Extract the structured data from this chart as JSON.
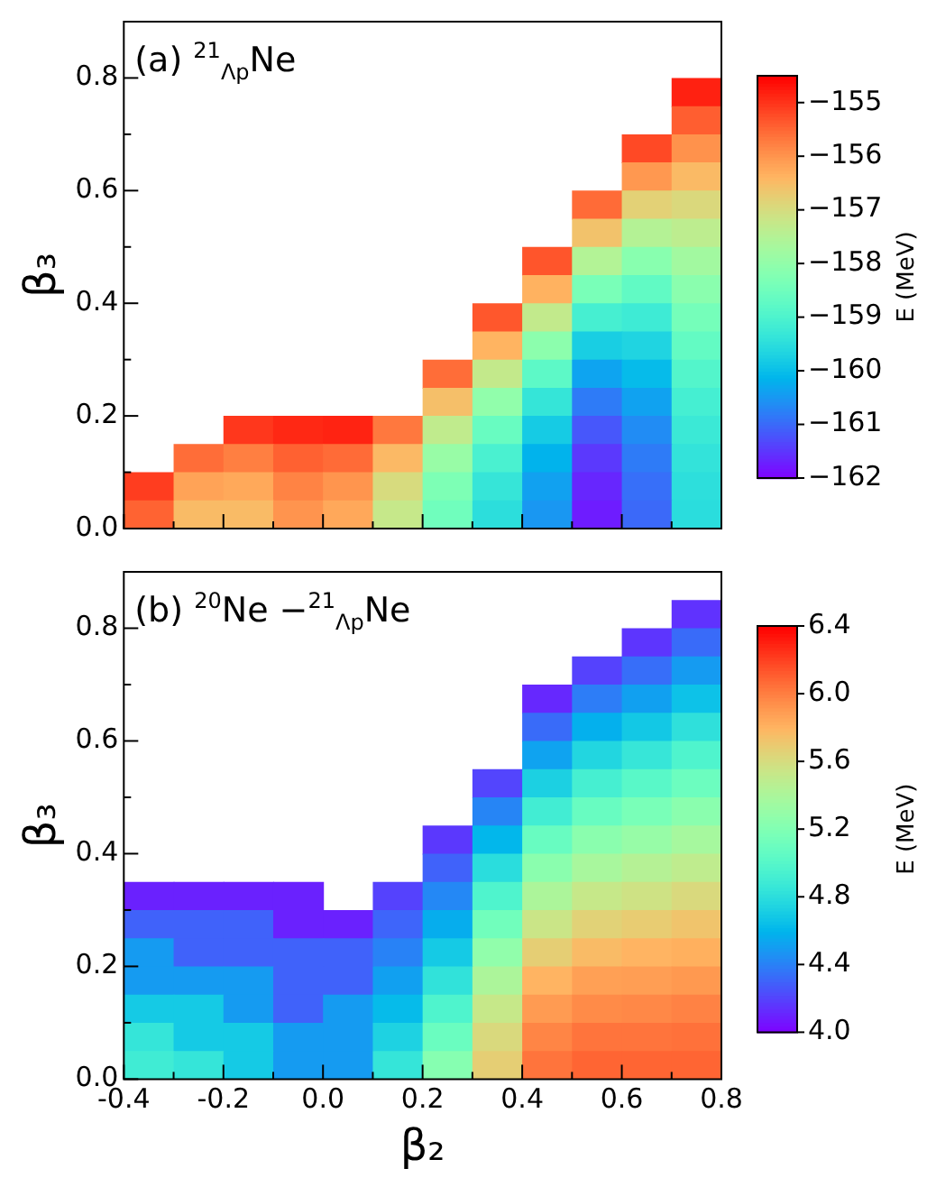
{
  "chart_data": [
    {
      "type": "heatmap",
      "title": "(a) $^{21}$$_{Λp}$Ne",
      "ylabel": "β₃",
      "clabel": "E (MeV)",
      "tick_labels": "y",
      "x": [
        -0.35,
        -0.25,
        -0.15,
        -0.05,
        0.05,
        0.15,
        0.25,
        0.35,
        0.45,
        0.55,
        0.65,
        0.75
      ],
      "y": [
        0.775,
        0.725,
        0.675,
        0.625,
        0.575,
        0.525,
        0.475,
        0.425,
        0.375,
        0.325,
        0.275,
        0.225,
        0.175,
        0.125,
        0.075,
        0.025
      ],
      "xlim": [
        -0.4,
        0.8
      ],
      "xticks": [
        -0.4,
        {
          "value": -0.3,
          "label": null
        },
        -0.2,
        {
          "value": -0.1,
          "label": null
        },
        0,
        {
          "value": 0.1,
          "label": null
        },
        0.2,
        {
          "value": 0.3,
          "label": null
        },
        0.4,
        {
          "value": 0.5,
          "label": null
        },
        0.6,
        {
          "value": 0.7,
          "label": null
        },
        0.8
      ],
      "ylim": [
        0,
        0.9
      ],
      "yticks": [
        {
          "value": 0,
          "label": "0.0"
        },
        {
          "value": 0.1,
          "label": null
        },
        0.2,
        {
          "value": 0.3,
          "label": null
        },
        0.4,
        {
          "value": 0.5,
          "label": null
        },
        0.6,
        {
          "value": 0.7,
          "label": null
        },
        0.8
      ],
      "clim": [
        -162,
        -154.5
      ],
      "cticks": [
        {
          "value": -162,
          "label": "−162"
        },
        {
          "value": -161,
          "label": "−161"
        },
        {
          "value": -160,
          "label": "−160"
        },
        {
          "value": -159,
          "label": "−159"
        },
        {
          "value": -158,
          "label": "−158"
        },
        {
          "value": -157,
          "label": "−157"
        },
        {
          "value": -156,
          "label": "−156"
        },
        {
          "value": -155,
          "label": "−155"
        }
      ],
      "cells": [
        [
          null,
          null,
          null,
          null,
          null,
          null,
          null,
          null,
          null,
          null,
          null,
          -154.81
        ],
        [
          null,
          null,
          null,
          null,
          null,
          null,
          null,
          null,
          null,
          null,
          null,
          -155.4
        ],
        [
          null,
          null,
          null,
          null,
          null,
          null,
          null,
          null,
          null,
          null,
          -155.19,
          -155.95
        ],
        [
          null,
          null,
          null,
          null,
          null,
          null,
          null,
          null,
          null,
          null,
          -156.02,
          -156.45
        ],
        [
          null,
          null,
          null,
          null,
          null,
          null,
          null,
          null,
          null,
          -155.53,
          -156.79,
          -156.92
        ],
        [
          null,
          null,
          null,
          null,
          null,
          null,
          null,
          null,
          null,
          -156.56,
          -157.48,
          -157.35
        ],
        [
          null,
          null,
          null,
          null,
          null,
          null,
          null,
          null,
          -155.31,
          -157.5,
          -158.12,
          -157.74
        ],
        [
          null,
          null,
          null,
          null,
          null,
          null,
          null,
          null,
          -156.35,
          -158.35,
          -158.7,
          -158.09
        ],
        [
          null,
          null,
          null,
          null,
          null,
          null,
          null,
          -155.33,
          -157.27,
          -159.1,
          -159.21,
          -158.4
        ],
        [
          null,
          null,
          null,
          null,
          null,
          null,
          null,
          -156.37,
          -158.07,
          -159.76,
          -159.66,
          -158.67
        ],
        [
          null,
          null,
          null,
          null,
          null,
          null,
          -155.55,
          -157.25,
          -158.76,
          -160.33,
          -160.04,
          -158.91
        ],
        [
          null,
          null,
          null,
          null,
          null,
          null,
          -156.52,
          -158.0,
          -159.34,
          -160.8,
          -160.36,
          -159.11
        ],
        [
          null,
          null,
          -155.02,
          -154.88,
          -154.83,
          -155.67,
          -157.3,
          -158.59,
          -159.8,
          -161.17,
          -160.61,
          -159.26
        ],
        [
          null,
          -155.55,
          -155.74,
          -155.43,
          -155.53,
          -156.44,
          -157.89,
          -159.04,
          -160.14,
          -161.46,
          -160.8,
          -159.38
        ],
        [
          -155.08,
          -156.16,
          -156.23,
          -155.79,
          -155.99,
          -156.96,
          -158.28,
          -159.33,
          -160.37,
          -161.64,
          -160.93,
          -159.46
        ],
        [
          -155.45,
          -156.46,
          -156.47,
          -155.98,
          -156.22,
          -157.22,
          -158.48,
          -159.48,
          -160.49,
          -161.74,
          -160.99,
          -159.5
        ]
      ]
    },
    {
      "type": "heatmap",
      "title": "(b) $^{20}$Ne −$^{21}$$_{Λp}$Ne",
      "xlabel": "β₂",
      "ylabel": "β₃",
      "clabel": "E (MeV)",
      "x": [
        -0.35,
        -0.25,
        -0.15,
        -0.05,
        0.05,
        0.15,
        0.25,
        0.35,
        0.45,
        0.55,
        0.65,
        0.75
      ],
      "y": [
        0.825,
        0.775,
        0.725,
        0.675,
        0.625,
        0.575,
        0.525,
        0.475,
        0.425,
        0.375,
        0.325,
        0.275,
        0.225,
        0.175,
        0.125,
        0.075,
        0.025
      ],
      "xlim": [
        -0.4,
        0.8
      ],
      "xticks": [
        {
          "value": -0.4,
          "label": "-0.4"
        },
        {
          "value": -0.3,
          "label": null
        },
        {
          "value": -0.2,
          "label": "-0.2"
        },
        {
          "value": -0.1,
          "label": null
        },
        {
          "value": 0,
          "label": "0.0"
        },
        {
          "value": 0.1,
          "label": null
        },
        {
          "value": 0.2,
          "label": "0.2"
        },
        {
          "value": 0.3,
          "label": null
        },
        {
          "value": 0.4,
          "label": "0.4"
        },
        {
          "value": 0.5,
          "label": null
        },
        {
          "value": 0.6,
          "label": "0.6"
        },
        {
          "value": 0.7,
          "label": null
        },
        {
          "value": 0.8,
          "label": "0.8"
        }
      ],
      "ylim": [
        0,
        0.9
      ],
      "yticks": [
        {
          "value": 0,
          "label": "0.0"
        },
        {
          "value": 0.1,
          "label": null
        },
        0.2,
        {
          "value": 0.3,
          "label": null
        },
        0.4,
        {
          "value": 0.5,
          "label": null
        },
        0.6,
        {
          "value": 0.7,
          "label": null
        },
        0.8
      ],
      "clim": [
        4.0,
        6.4
      ],
      "cticks": [
        {
          "value": 4.0,
          "label": "4.0"
        },
        4.4,
        {
          "value": 4.8,
          "label": "4.8"
        },
        5.2,
        5.6,
        {
          "value": 6.0,
          "label": "6.0"
        },
        6.4
      ],
      "cells": [
        [
          null,
          null,
          null,
          null,
          null,
          null,
          null,
          null,
          null,
          null,
          null,
          4.15
        ],
        [
          null,
          null,
          null,
          null,
          null,
          null,
          null,
          null,
          null,
          null,
          4.16,
          4.33
        ],
        [
          null,
          null,
          null,
          null,
          null,
          null,
          null,
          null,
          null,
          4.2,
          4.34,
          4.5
        ],
        [
          null,
          null,
          null,
          null,
          null,
          null,
          null,
          null,
          4.12,
          4.39,
          4.52,
          4.66
        ],
        [
          null,
          null,
          null,
          null,
          null,
          null,
          null,
          null,
          4.33,
          4.58,
          4.69,
          4.82
        ],
        [
          null,
          null,
          null,
          null,
          null,
          null,
          null,
          null,
          4.53,
          4.76,
          4.86,
          4.97
        ],
        [
          null,
          null,
          null,
          null,
          null,
          null,
          null,
          4.21,
          4.73,
          4.93,
          5.02,
          5.11
        ],
        [
          null,
          null,
          null,
          null,
          null,
          null,
          null,
          4.42,
          4.91,
          5.09,
          5.17,
          5.25
        ],
        [
          null,
          null,
          null,
          null,
          null,
          null,
          4.17,
          4.61,
          5.09,
          5.25,
          5.31,
          5.38
        ],
        [
          null,
          null,
          null,
          null,
          null,
          null,
          4.3,
          4.8,
          5.25,
          5.39,
          5.45,
          5.5
        ],
        [
          4.1,
          4.1,
          4.1,
          4.1,
          null,
          4.2,
          4.43,
          4.97,
          5.41,
          5.53,
          5.57,
          5.62
        ],
        [
          4.3,
          4.3,
          4.3,
          4.1,
          4.1,
          4.31,
          4.57,
          5.13,
          5.55,
          5.66,
          5.69,
          5.73
        ],
        [
          4.5,
          4.3,
          4.3,
          4.3,
          4.3,
          4.41,
          4.7,
          5.28,
          5.68,
          5.77,
          5.8,
          5.82
        ],
        [
          4.5,
          4.5,
          4.5,
          4.3,
          4.3,
          4.52,
          4.83,
          5.41,
          5.8,
          5.88,
          5.89,
          5.91
        ],
        [
          4.7,
          4.7,
          4.5,
          4.3,
          4.5,
          4.63,
          4.97,
          5.53,
          5.9,
          5.96,
          5.97,
          5.99
        ],
        [
          4.85,
          4.7,
          4.7,
          4.5,
          4.5,
          4.74,
          5.1,
          5.62,
          5.98,
          6.04,
          6.04,
          6.05
        ],
        [
          4.9,
          4.85,
          4.7,
          4.5,
          4.5,
          4.85,
          5.23,
          5.68,
          6.04,
          6.09,
          6.09,
          6.09
        ]
      ]
    }
  ]
}
